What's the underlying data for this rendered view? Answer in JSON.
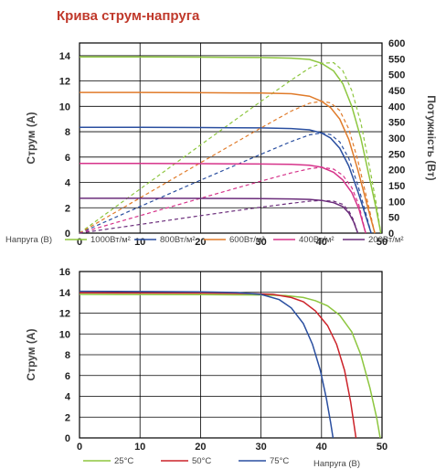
{
  "title": "Крива струм-напруга",
  "colors": {
    "title": "#c0392b",
    "grid": "#000000",
    "axis": "#000000"
  },
  "chart_data": [
    {
      "type": "line",
      "ylabel": "Струм (А)",
      "y2label": "Потужність (Вт)",
      "xlabel": "Напруга (В)",
      "xlim": [
        0,
        50
      ],
      "ylim": [
        0,
        15
      ],
      "y2lim": [
        0,
        600
      ],
      "xticks": [
        0,
        10,
        20,
        30,
        40,
        50
      ],
      "yticks": [
        0,
        2,
        4,
        6,
        8,
        10,
        12,
        14
      ],
      "y2ticks": [
        0,
        50,
        100,
        150,
        200,
        250,
        300,
        350,
        400,
        450,
        500,
        550,
        600
      ],
      "grid": true,
      "legend_position": "bottom",
      "series": [
        {
          "name": "1000Вт/м²",
          "color": "#8dc63f",
          "current": [
            [
              0,
              13.9
            ],
            [
              10,
              13.9
            ],
            [
              20,
              13.88
            ],
            [
              30,
              13.85
            ],
            [
              35,
              13.8
            ],
            [
              38,
              13.7
            ],
            [
              40,
              13.4
            ],
            [
              42,
              12.8
            ],
            [
              43.5,
              11.8
            ],
            [
              45,
              10.0
            ],
            [
              46.5,
              7.5
            ],
            [
              48,
              4.2
            ],
            [
              49,
              2.0
            ],
            [
              49.8,
              0
            ]
          ],
          "power": [
            [
              0,
              0
            ],
            [
              10,
              139
            ],
            [
              20,
              278
            ],
            [
              30,
              416
            ],
            [
              35,
              483
            ],
            [
              38,
              521
            ],
            [
              40,
              536
            ],
            [
              42,
              538
            ],
            [
              43.5,
              513
            ],
            [
              45,
              450
            ],
            [
              46.5,
              349
            ],
            [
              48,
              202
            ],
            [
              49,
              98
            ],
            [
              49.8,
              0
            ]
          ]
        },
        {
          "name": "800Вт/м²",
          "color": "#2a4fa0",
          "current": [
            [
              0,
              8.35
            ],
            [
              10,
              8.35
            ],
            [
              20,
              8.33
            ],
            [
              30,
              8.3
            ],
            [
              35,
              8.25
            ],
            [
              38,
              8.15
            ],
            [
              40,
              7.9
            ],
            [
              41.5,
              7.5
            ],
            [
              43,
              6.7
            ],
            [
              44.5,
              5.3
            ],
            [
              46,
              3.3
            ],
            [
              47.2,
              1.5
            ],
            [
              48.2,
              0
            ]
          ],
          "power": [
            [
              0,
              0
            ],
            [
              10,
              84
            ],
            [
              20,
              167
            ],
            [
              30,
              249
            ],
            [
              35,
              289
            ],
            [
              38,
              310
            ],
            [
              40,
              316
            ],
            [
              41.5,
              311
            ],
            [
              43,
              288
            ],
            [
              44.5,
              236
            ],
            [
              46,
              152
            ],
            [
              47.2,
              71
            ],
            [
              48.2,
              0
            ]
          ]
        },
        {
          "name": "600Вт/м²",
          "color": "#e07b2a",
          "current": [
            [
              0,
              11.1
            ],
            [
              10,
              11.1
            ],
            [
              20,
              11.08
            ],
            [
              30,
              11.05
            ],
            [
              35,
              11.0
            ],
            [
              38,
              10.8
            ],
            [
              40,
              10.4
            ],
            [
              41.5,
              9.9
            ],
            [
              43,
              9.0
            ],
            [
              44.5,
              7.4
            ],
            [
              46,
              5.0
            ],
            [
              47.5,
              2.3
            ],
            [
              48.8,
              0
            ]
          ],
          "power": [
            [
              0,
              0
            ],
            [
              10,
              111
            ],
            [
              20,
              222
            ],
            [
              30,
              332
            ],
            [
              35,
              385
            ],
            [
              38,
              410
            ],
            [
              40,
              416
            ],
            [
              41.5,
              411
            ],
            [
              43,
              387
            ],
            [
              44.5,
              329
            ],
            [
              46,
              230
            ],
            [
              47.5,
              109
            ],
            [
              48.8,
              0
            ]
          ]
        },
        {
          "name": "400Вт/м²",
          "color": "#d6338a",
          "current": [
            [
              0,
              5.5
            ],
            [
              10,
              5.5
            ],
            [
              20,
              5.48
            ],
            [
              30,
              5.45
            ],
            [
              35,
              5.42
            ],
            [
              38,
              5.35
            ],
            [
              40,
              5.2
            ],
            [
              42,
              4.8
            ],
            [
              43.5,
              4.2
            ],
            [
              45,
              3.2
            ],
            [
              46.2,
              1.9
            ],
            [
              47.3,
              0
            ]
          ],
          "power": [
            [
              0,
              0
            ],
            [
              10,
              55
            ],
            [
              20,
              110
            ],
            [
              30,
              164
            ],
            [
              35,
              190
            ],
            [
              38,
              203
            ],
            [
              40,
              208
            ],
            [
              42,
              202
            ],
            [
              43.5,
              183
            ],
            [
              45,
              144
            ],
            [
              46.2,
              88
            ],
            [
              47.3,
              0
            ]
          ]
        },
        {
          "name": "200Вт/м²",
          "color": "#6b2d7b",
          "current": [
            [
              0,
              2.75
            ],
            [
              10,
              2.75
            ],
            [
              20,
              2.74
            ],
            [
              30,
              2.72
            ],
            [
              35,
              2.7
            ],
            [
              38,
              2.66
            ],
            [
              40,
              2.58
            ],
            [
              42,
              2.4
            ],
            [
              43.5,
              2.1
            ],
            [
              44.5,
              1.6
            ],
            [
              45.3,
              0.9
            ],
            [
              46,
              0
            ]
          ],
          "power": [
            [
              0,
              0
            ],
            [
              10,
              27.5
            ],
            [
              20,
              55
            ],
            [
              30,
              82
            ],
            [
              35,
              94
            ],
            [
              38,
              101
            ],
            [
              40,
              103
            ],
            [
              42,
              101
            ],
            [
              43.5,
              91
            ],
            [
              44.5,
              71
            ],
            [
              45.3,
              41
            ],
            [
              46,
              0
            ]
          ]
        }
      ]
    },
    {
      "type": "line",
      "ylabel": "Струм (А)",
      "xlabel": "Напруга (В)",
      "xlim": [
        0,
        50
      ],
      "ylim": [
        0,
        16
      ],
      "xticks": [
        0,
        10,
        20,
        30,
        40,
        50
      ],
      "yticks": [
        0,
        2,
        4,
        6,
        8,
        10,
        12,
        14,
        16
      ],
      "grid": true,
      "legend_position": "bottom",
      "series": [
        {
          "name": "25°C",
          "color": "#8dc63f",
          "current": [
            [
              0,
              13.8
            ],
            [
              20,
              13.78
            ],
            [
              30,
              13.75
            ],
            [
              34,
              13.7
            ],
            [
              37,
              13.5
            ],
            [
              39,
              13.2
            ],
            [
              41,
              12.7
            ],
            [
              43,
              11.8
            ],
            [
              45,
              10.2
            ],
            [
              46.5,
              8.0
            ],
            [
              48,
              4.8
            ],
            [
              49.1,
              2.0
            ],
            [
              49.7,
              0
            ]
          ]
        },
        {
          "name": "50°C",
          "color": "#cc2229",
          "current": [
            [
              0,
              13.95
            ],
            [
              20,
              13.93
            ],
            [
              28,
              13.88
            ],
            [
              32,
              13.8
            ],
            [
              35,
              13.5
            ],
            [
              37,
              13.1
            ],
            [
              39,
              12.2
            ],
            [
              41,
              10.8
            ],
            [
              42.5,
              9.0
            ],
            [
              43.8,
              6.5
            ],
            [
              44.8,
              3.5
            ],
            [
              45.4,
              1.2
            ],
            [
              45.7,
              0
            ]
          ]
        },
        {
          "name": "75°C",
          "color": "#2a4fa0",
          "current": [
            [
              0,
              14.1
            ],
            [
              20,
              14.05
            ],
            [
              26,
              13.98
            ],
            [
              30,
              13.8
            ],
            [
              33,
              13.3
            ],
            [
              35,
              12.5
            ],
            [
              37,
              11.0
            ],
            [
              38.5,
              9.0
            ],
            [
              39.8,
              6.5
            ],
            [
              40.8,
              3.8
            ],
            [
              41.5,
              1.5
            ],
            [
              41.9,
              0
            ]
          ]
        }
      ]
    }
  ]
}
